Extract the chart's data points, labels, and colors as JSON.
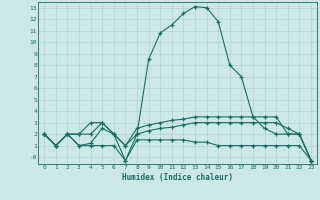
{
  "xlabel": "Humidex (Indice chaleur)",
  "background_color": "#cce8e4",
  "grid_color": "#aad0cc",
  "line_color": "#1a6e64",
  "xlim": [
    -0.5,
    23.5
  ],
  "ylim": [
    -0.6,
    13.5
  ],
  "yticks": [
    0,
    1,
    2,
    3,
    4,
    5,
    6,
    7,
    8,
    9,
    10,
    11,
    12,
    13
  ],
  "ytick_labels": [
    "-0",
    "1",
    "2",
    "3",
    "4",
    "5",
    "6",
    "7",
    "8",
    "9",
    "10",
    "11",
    "12",
    "13"
  ],
  "xticks": [
    0,
    1,
    2,
    3,
    4,
    5,
    6,
    7,
    8,
    9,
    10,
    11,
    12,
    13,
    14,
    15,
    16,
    17,
    18,
    19,
    20,
    21,
    22,
    23
  ],
  "line1_x": [
    0,
    1,
    2,
    3,
    4,
    5,
    6,
    7,
    8,
    9,
    10,
    11,
    12,
    13,
    14,
    15,
    16,
    17,
    18,
    19,
    20,
    21,
    22,
    23
  ],
  "line1_y": [
    2.0,
    1.0,
    2.0,
    2.0,
    3.0,
    3.0,
    2.0,
    -0.3,
    2.0,
    8.5,
    10.8,
    11.5,
    12.5,
    13.1,
    13.0,
    11.8,
    8.0,
    7.0,
    3.5,
    2.5,
    2.0,
    2.0,
    2.0,
    -0.3
  ],
  "line2_x": [
    0,
    1,
    2,
    3,
    4,
    5,
    6,
    7,
    8,
    9,
    10,
    11,
    12,
    13,
    14,
    15,
    16,
    17,
    18,
    19,
    20,
    21,
    22,
    23
  ],
  "line2_y": [
    2.0,
    1.0,
    2.0,
    2.0,
    2.0,
    3.0,
    2.0,
    1.0,
    2.5,
    2.8,
    3.0,
    3.2,
    3.3,
    3.5,
    3.5,
    3.5,
    3.5,
    3.5,
    3.5,
    3.5,
    3.5,
    2.0,
    2.0,
    -0.3
  ],
  "line3_x": [
    0,
    1,
    2,
    3,
    4,
    5,
    6,
    7,
    8,
    9,
    10,
    11,
    12,
    13,
    14,
    15,
    16,
    17,
    18,
    19,
    20,
    21,
    22,
    23
  ],
  "line3_y": [
    2.0,
    1.0,
    2.0,
    1.0,
    1.2,
    2.5,
    2.0,
    1.0,
    2.0,
    2.3,
    2.5,
    2.6,
    2.8,
    3.0,
    3.0,
    3.0,
    3.0,
    3.0,
    3.0,
    3.0,
    3.0,
    2.5,
    2.0,
    -0.3
  ],
  "line4_x": [
    0,
    1,
    2,
    3,
    4,
    5,
    6,
    7,
    8,
    9,
    10,
    11,
    12,
    13,
    14,
    15,
    16,
    17,
    18,
    19,
    20,
    21,
    22,
    23
  ],
  "line4_y": [
    2.0,
    1.0,
    2.0,
    1.0,
    1.0,
    1.0,
    1.0,
    -0.3,
    1.5,
    1.5,
    1.5,
    1.5,
    1.5,
    1.3,
    1.3,
    1.0,
    1.0,
    1.0,
    1.0,
    1.0,
    1.0,
    1.0,
    1.0,
    -0.3
  ]
}
